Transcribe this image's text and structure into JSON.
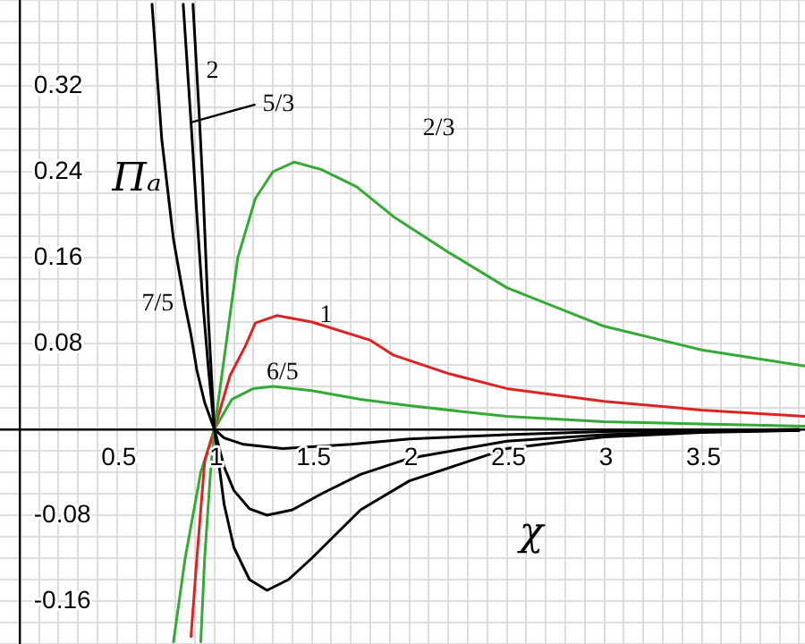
{
  "chart_data": {
    "type": "line",
    "xlabel": "χ",
    "ylabel": "Πₐ",
    "xlim": [
      -0.1,
      4.03
    ],
    "ylim": [
      -0.2,
      0.4
    ],
    "xticks": [
      {
        "value": 0,
        "label": null
      },
      {
        "value": 0.1,
        "label": null
      },
      {
        "value": 0.2,
        "label": null
      },
      {
        "value": 0.3,
        "label": null
      },
      {
        "value": 0.4,
        "label": null
      },
      0.5,
      {
        "value": 0.6,
        "label": null
      },
      {
        "value": 0.7,
        "label": null
      },
      {
        "value": 0.8,
        "label": null
      },
      {
        "value": 0.9,
        "label": null
      },
      1,
      {
        "value": 1.1,
        "label": null
      },
      {
        "value": 1.2,
        "label": null
      },
      {
        "value": 1.3,
        "label": null
      },
      {
        "value": 1.4,
        "label": null
      },
      1.5,
      {
        "value": 1.6,
        "label": null
      },
      {
        "value": 1.7,
        "label": null
      },
      {
        "value": 1.8,
        "label": null
      },
      {
        "value": 1.9,
        "label": null
      },
      2,
      {
        "value": 2.1,
        "label": null
      },
      {
        "value": 2.2,
        "label": null
      },
      {
        "value": 2.3,
        "label": null
      },
      {
        "value": 2.4,
        "label": null
      },
      2.5,
      {
        "value": 2.6,
        "label": null
      },
      {
        "value": 2.7,
        "label": null
      },
      {
        "value": 2.8,
        "label": null
      },
      {
        "value": 2.9,
        "label": null
      },
      3,
      {
        "value": 3.1,
        "label": null
      },
      {
        "value": 3.2,
        "label": null
      },
      {
        "value": 3.3,
        "label": null
      },
      {
        "value": 3.4,
        "label": null
      },
      3.5,
      {
        "value": 3.6,
        "label": null
      },
      {
        "value": 3.7,
        "label": null
      },
      {
        "value": 3.8,
        "label": null
      },
      {
        "value": 3.9,
        "label": null
      },
      {
        "value": 4,
        "label": null
      }
    ],
    "yticks": [
      {
        "value": -0.2,
        "label": null
      },
      {
        "value": -0.18,
        "label": null
      },
      -0.16,
      {
        "value": -0.14,
        "label": null
      },
      {
        "value": -0.12,
        "label": null
      },
      {
        "value": -0.1,
        "label": null
      },
      -0.08,
      {
        "value": -0.06,
        "label": null
      },
      {
        "value": -0.04,
        "label": null
      },
      {
        "value": -0.02,
        "label": null
      },
      {
        "value": 0,
        "label": null
      },
      {
        "value": 0.02,
        "label": null
      },
      {
        "value": 0.04,
        "label": null
      },
      {
        "value": 0.06,
        "label": null
      },
      0.08,
      {
        "value": 0.1,
        "label": null
      },
      {
        "value": 0.12,
        "label": null
      },
      {
        "value": 0.14,
        "label": null
      },
      0.16,
      {
        "value": 0.18,
        "label": null
      },
      {
        "value": 0.2,
        "label": null
      },
      {
        "value": 0.22,
        "label": null
      },
      0.24,
      {
        "value": 0.26,
        "label": null
      },
      {
        "value": 0.28,
        "label": null
      },
      {
        "value": 0.3,
        "label": null
      },
      0.32,
      {
        "value": 0.34,
        "label": null
      },
      {
        "value": 0.36,
        "label": null
      },
      {
        "value": 0.38,
        "label": null
      },
      {
        "value": 0.4,
        "label": null
      }
    ],
    "grid": true,
    "legend": false,
    "marker": "none",
    "line_style": "solid",
    "series": [
      {
        "color": "#000000",
        "x": [
          0.68,
          0.73,
          0.79,
          0.85,
          0.88,
          0.91,
          0.95,
          1,
          1.05,
          1.15,
          1.35,
          1.7,
          2,
          2.5,
          3,
          3.5,
          4
        ],
        "values": [
          0.396,
          0.27,
          0.177,
          0.115,
          0.088,
          0.055,
          0.025,
          0,
          -0.008,
          -0.014,
          -0.018,
          -0.014,
          -0.009,
          -0.005,
          -0.002,
          -0.001,
          0
        ]
      },
      {
        "color": "#000000",
        "x": [
          0.84,
          0.88,
          0.91,
          0.94,
          0.97,
          1,
          1.05,
          1.1,
          1.18,
          1.27,
          1.4,
          1.55,
          1.75,
          2,
          2.5,
          3,
          3.5,
          4
        ],
        "values": [
          0.396,
          0.286,
          0.2,
          0.12,
          0.055,
          0,
          -0.035,
          -0.057,
          -0.074,
          -0.08,
          -0.075,
          -0.06,
          -0.042,
          -0.027,
          -0.011,
          -0.005,
          -0.002,
          -0.001
        ]
      },
      {
        "color": "#000000",
        "x": [
          0.89,
          0.92,
          0.94,
          0.97,
          1,
          1.05,
          1.1,
          1.18,
          1.27,
          1.38,
          1.5,
          1.75,
          2,
          2.5,
          3,
          3.5,
          4
        ],
        "values": [
          0.396,
          0.3,
          0.23,
          0.1,
          0,
          -0.07,
          -0.11,
          -0.14,
          -0.15,
          -0.14,
          -0.12,
          -0.075,
          -0.048,
          -0.018,
          -0.007,
          -0.003,
          -0.001
        ]
      },
      {
        "color": "#33aa33",
        "x": [
          0.93,
          0.95,
          0.98,
          1,
          1.05,
          1.12,
          1.21,
          1.3,
          1.41,
          1.55,
          1.73,
          1.92,
          2.2,
          2.5,
          3,
          3.5,
          4.03
        ],
        "values": [
          -0.198,
          -0.12,
          -0.04,
          0,
          0.066,
          0.16,
          0.215,
          0.24,
          0.249,
          0.242,
          0.226,
          0.198,
          0.165,
          0.132,
          0.096,
          0.074,
          0.059
        ]
      },
      {
        "color": "#dd2222",
        "x": [
          0.88,
          0.91,
          0.95,
          1,
          1.08,
          1.16,
          1.21,
          1.32,
          1.5,
          1.8,
          1.92,
          2.2,
          2.5,
          3,
          3.5,
          4.03
        ],
        "values": [
          -0.193,
          -0.12,
          -0.03,
          0,
          0.05,
          0.078,
          0.099,
          0.106,
          0.1,
          0.083,
          0.069,
          0.052,
          0.038,
          0.026,
          0.018,
          0.012
        ]
      },
      {
        "color": "#33aa33",
        "x": [
          0.79,
          0.85,
          0.93,
          1,
          1.09,
          1.2,
          1.3,
          1.5,
          1.75,
          2,
          2.5,
          3,
          3.5,
          4.03
        ],
        "values": [
          -0.198,
          -0.12,
          -0.04,
          0,
          0.028,
          0.038,
          0.04,
          0.036,
          0.028,
          0.022,
          0.012,
          0.007,
          0.005,
          0.003
        ]
      }
    ],
    "annotations": [
      "2",
      {
        "text": "5/3",
        "x": 0.88,
        "y": 0.286
      },
      "7/5",
      "2/3",
      "1",
      "6/5"
    ]
  }
}
